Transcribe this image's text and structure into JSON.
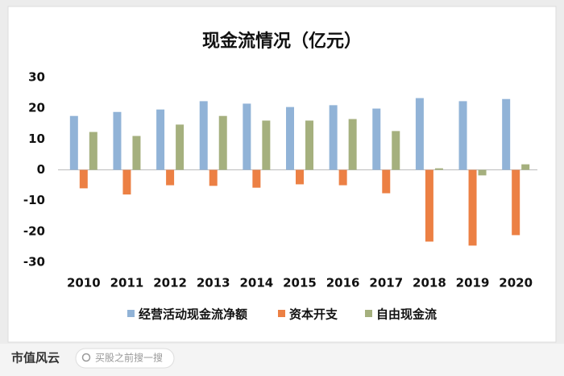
{
  "chart_data": {
    "type": "bar",
    "title": "现金流情况（亿元）",
    "categories": [
      "2010",
      "2011",
      "2012",
      "2013",
      "2014",
      "2015",
      "2016",
      "2017",
      "2018",
      "2019",
      "2020"
    ],
    "series": [
      {
        "name": "经营活动现金流净额",
        "color": "#91b3d7",
        "values": [
          17.5,
          18.8,
          19.6,
          22.3,
          21.5,
          20.4,
          21,
          19.9,
          23.3,
          22.3,
          23
        ]
      },
      {
        "name": "资本开支",
        "color": "#ec8044",
        "values": [
          -6,
          -8,
          -5,
          -5.2,
          -5.8,
          -4.7,
          -5,
          -7.6,
          -23.3,
          -24.6,
          -21.2
        ]
      },
      {
        "name": "自由现金流",
        "color": "#a5b07e",
        "values": [
          12.3,
          11,
          14.7,
          17.5,
          16,
          16,
          16.5,
          12.6,
          0.5,
          -1.8,
          1.8
        ]
      }
    ],
    "ylim": [
      -30,
      30
    ],
    "yticks": [
      -30,
      -20,
      -10,
      0,
      10,
      20,
      30
    ],
    "grid": false,
    "legend": "bottom"
  },
  "footer": {
    "logo": "市值风云",
    "search": "买股之前搜一搜"
  }
}
